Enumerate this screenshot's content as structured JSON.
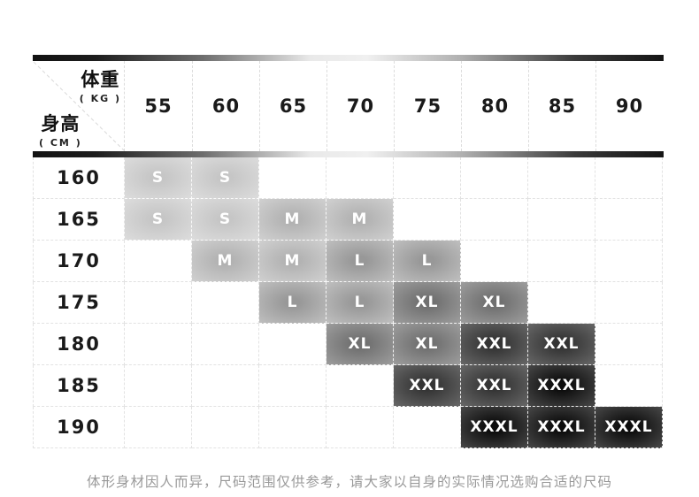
{
  "header": {
    "weight_label": "体重",
    "weight_unit": "( KG )",
    "height_label": "身高",
    "height_unit": "( CM )"
  },
  "chart_data": {
    "type": "table",
    "title": "",
    "x_axis_label": "体重 (KG)",
    "y_axis_label": "身高 (CM)",
    "columns_weights_kg": [
      55,
      60,
      65,
      70,
      75,
      80,
      85,
      90
    ],
    "rows_heights_cm": [
      160,
      165,
      170,
      175,
      180,
      185,
      190
    ],
    "size_levels": [
      "S",
      "M",
      "L",
      "XL",
      "XXL",
      "XXXL"
    ],
    "size_matrix": [
      [
        "S",
        "S",
        "",
        "",
        "",
        "",
        "",
        ""
      ],
      [
        "S",
        "S",
        "M",
        "M",
        "",
        "",
        "",
        ""
      ],
      [
        "",
        "M",
        "M",
        "L",
        "L",
        "",
        "",
        ""
      ],
      [
        "",
        "",
        "L",
        "L",
        "XL",
        "XL",
        "",
        ""
      ],
      [
        "",
        "",
        "",
        "XL",
        "XL",
        "XXL",
        "XXL",
        ""
      ],
      [
        "",
        "",
        "",
        "",
        "XXL",
        "XXL",
        "XXXL",
        ""
      ],
      [
        "",
        "",
        "",
        "",
        "",
        "XXXL",
        "XXXL",
        "XXXL"
      ]
    ]
  },
  "caption": "体形身材因人而异，尺码范围仅供参考，请大家以自身的实际情况选购合适的尺码",
  "colors": {
    "size_cell_S": "#c6c6c6",
    "size_cell_M": "#b2b2b2",
    "size_cell_L": "#989898",
    "size_cell_XL": "#707070",
    "size_cell_XXL": "#343434",
    "size_cell_XXXL": "#0c0c0c",
    "cell_text": "#ffffff",
    "grid_line": "#e2e2e2",
    "header_text": "#1a1a1a",
    "caption_text": "#999999",
    "gradient_bar_dark": "#121212",
    "gradient_bar_light": "#f0f0f0"
  }
}
